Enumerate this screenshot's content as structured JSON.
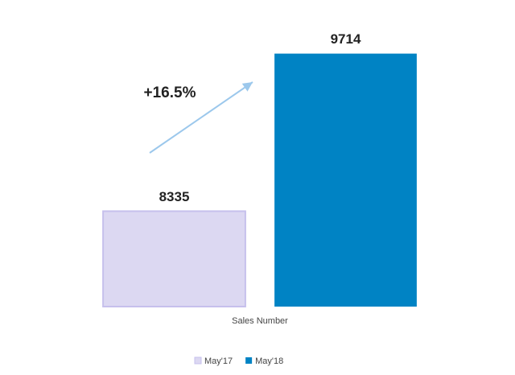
{
  "chart_data": {
    "type": "bar",
    "categories": [
      "Sales Number"
    ],
    "series": [
      {
        "name": "May'17",
        "color": "#dcd8f2",
        "values": [
          8335
        ]
      },
      {
        "name": "May'18",
        "color": "#0083c4",
        "values": [
          9714
        ]
      }
    ],
    "ylim": [
      7500,
      10000
    ],
    "annotation": "+16.5%"
  }
}
